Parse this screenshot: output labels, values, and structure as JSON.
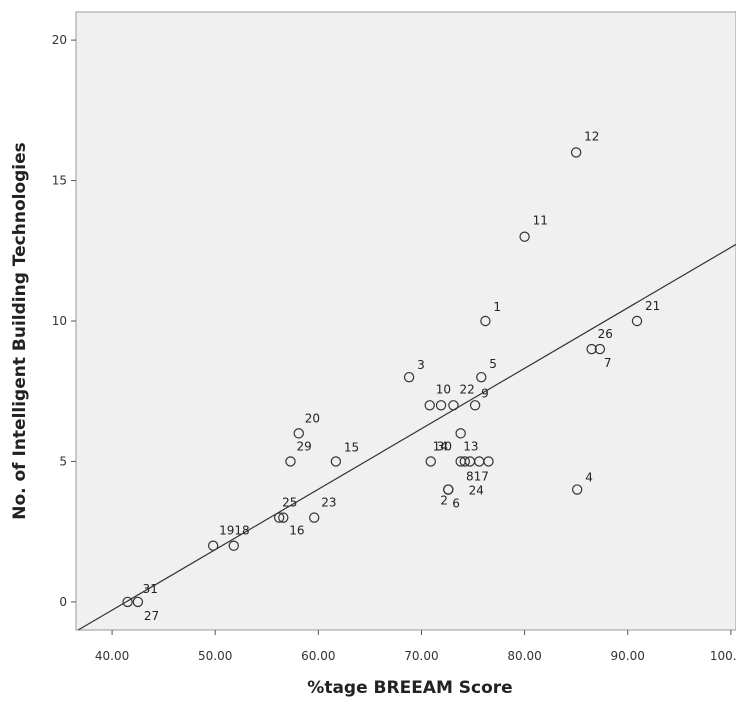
{
  "chart_data": {
    "type": "scatter",
    "xlabel": "%tage BREEAM Score",
    "ylabel": "No. of Intelligent Building Technologies",
    "xlim": [
      36.5,
      100.5
    ],
    "ylim": [
      -1.0,
      21.0
    ],
    "x_ticks": [
      "40.00",
      "50.00",
      "60.00",
      "70.00",
      "80.00",
      "90.00",
      "100.00"
    ],
    "x_tick_values": [
      40,
      50,
      60,
      70,
      80,
      90,
      100
    ],
    "y_ticks": [
      "0",
      "5",
      "10",
      "15",
      "20"
    ],
    "y_tick_values": [
      0,
      5,
      10,
      15,
      20
    ],
    "grid": false,
    "marker": "open-circle",
    "plot_background": "#f0f0f0",
    "marker_color": "#333333",
    "fit_line": {
      "slope": 0.2152,
      "intercept": -8.9
    },
    "points": [
      {
        "label": "1",
        "x": 76.2,
        "y": 10
      },
      {
        "label": "2",
        "x": 72.6,
        "y": 4
      },
      {
        "label": "3",
        "x": 68.8,
        "y": 8
      },
      {
        "label": "4",
        "x": 85.1,
        "y": 4
      },
      {
        "label": "5",
        "x": 75.8,
        "y": 8
      },
      {
        "label": "6",
        "x": 72.6,
        "y": 4
      },
      {
        "label": "7",
        "x": 87.3,
        "y": 9
      },
      {
        "label": "8",
        "x": 74.7,
        "y": 5
      },
      {
        "label": "9",
        "x": 75.2,
        "y": 7
      },
      {
        "label": "10",
        "x": 70.8,
        "y": 7
      },
      {
        "label": "11",
        "x": 80.0,
        "y": 13
      },
      {
        "label": "12",
        "x": 85.0,
        "y": 16
      },
      {
        "label": "13",
        "x": 75.6,
        "y": 5
      },
      {
        "label": "14",
        "x": 73.8,
        "y": 6
      },
      {
        "label": "15",
        "x": 61.7,
        "y": 5
      },
      {
        "label": "16",
        "x": 56.6,
        "y": 3
      },
      {
        "label": "17",
        "x": 76.5,
        "y": 5
      },
      {
        "label": "18",
        "x": 51.8,
        "y": 2
      },
      {
        "label": "19",
        "x": 49.8,
        "y": 2
      },
      {
        "label": "20",
        "x": 58.1,
        "y": 6
      },
      {
        "label": "21",
        "x": 90.9,
        "y": 10
      },
      {
        "label": "22",
        "x": 73.1,
        "y": 7
      },
      {
        "label": "23",
        "x": 59.6,
        "y": 3
      },
      {
        "label": "24",
        "x": 73.8,
        "y": 5
      },
      {
        "label": "25",
        "x": 56.2,
        "y": 3
      },
      {
        "label": "26",
        "x": 86.5,
        "y": 9
      },
      {
        "label": "27",
        "x": 42.5,
        "y": 0
      },
      {
        "label": "29",
        "x": 57.3,
        "y": 5
      },
      {
        "label": "30",
        "x": 70.9,
        "y": 5
      },
      {
        "label": "31",
        "x": 41.5,
        "y": 0
      },
      {
        "label": "",
        "x": 71.9,
        "y": 7
      },
      {
        "label": "",
        "x": 74.2,
        "y": 5
      }
    ],
    "point_label_texts": [
      {
        "text": "12",
        "anchor": 12
      },
      {
        "text": "11",
        "anchor": 11
      },
      {
        "text": "1",
        "anchor": 1
      },
      {
        "text": "21",
        "anchor": 21
      },
      {
        "text": "26",
        "anchor": 26
      },
      {
        "text": "7",
        "anchor": 7
      },
      {
        "text": "3",
        "anchor": 3
      },
      {
        "text": "5",
        "anchor": 5
      },
      {
        "text": "10",
        "anchor": 10
      },
      {
        "text": "22",
        "anchor": 22
      },
      {
        "text": "9",
        "anchor": 9
      },
      {
        "text": "14",
        "anchor": 14
      },
      {
        "text": "24",
        "anchor": 24
      },
      {
        "text": "20",
        "anchor": 20
      },
      {
        "text": "29",
        "anchor": 29
      },
      {
        "text": "15",
        "anchor": 15
      },
      {
        "text": "30",
        "anchor": 30
      },
      {
        "text": "13",
        "anchor": 13
      },
      {
        "text": "2",
        "anchor": 2
      },
      {
        "text": "817",
        "anchor": 8
      },
      {
        "text": "6",
        "anchor": 6
      },
      {
        "text": "4",
        "anchor": 4
      },
      {
        "text": "25",
        "anchor": 25
      },
      {
        "text": "23",
        "anchor": 23
      },
      {
        "text": "16",
        "anchor": 16
      },
      {
        "text": "1918",
        "anchor": 19
      },
      {
        "text": "31",
        "anchor": 31
      },
      {
        "text": "27",
        "anchor": 27
      }
    ]
  }
}
